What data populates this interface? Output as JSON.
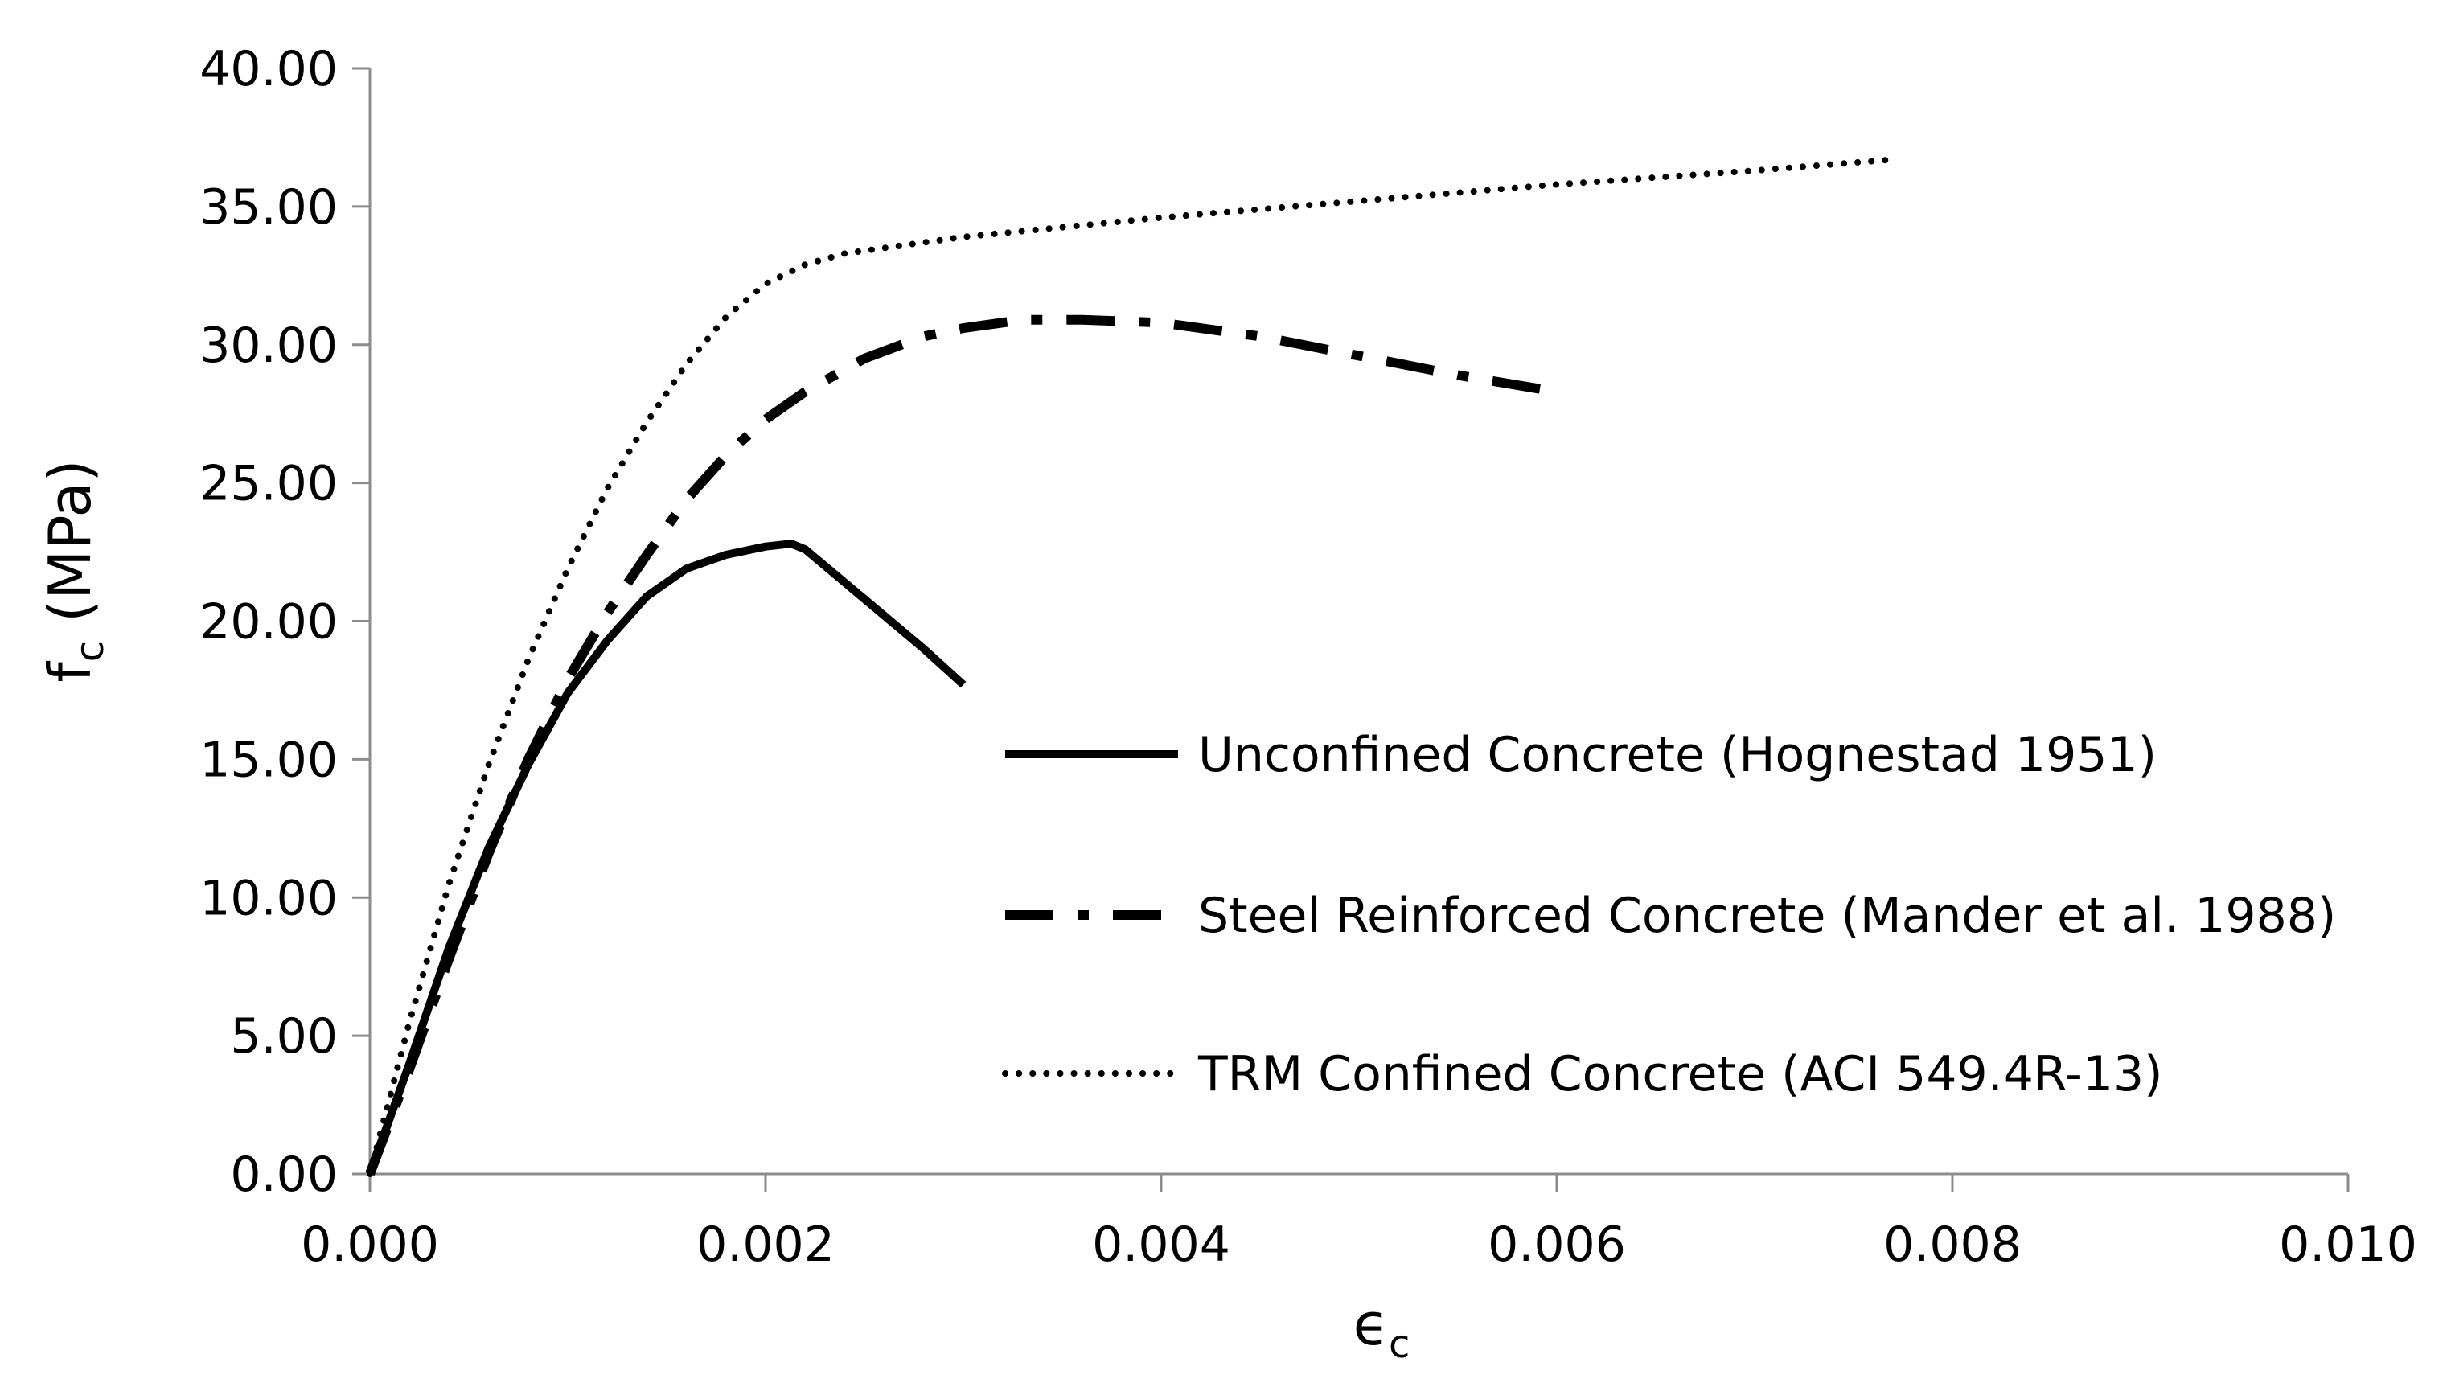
{
  "chart_data": {
    "type": "line",
    "title": "",
    "xlabel": {
      "main": "ϵ",
      "sub": "c"
    },
    "ylabel": {
      "main": "f",
      "sub": "c",
      "unit": " (MPa)"
    },
    "xlim": [
      0,
      0.01
    ],
    "ylim": [
      0,
      40
    ],
    "xticks": [
      0,
      0.002,
      0.004,
      0.006,
      0.008,
      0.01
    ],
    "xtick_labels": [
      "0.000",
      "0.002",
      "0.004",
      "0.006",
      "0.008",
      "0.010"
    ],
    "yticks": [
      0,
      5,
      10,
      15,
      20,
      25,
      30,
      35,
      40
    ],
    "ytick_labels": [
      "0.00",
      "5.00",
      "10.00",
      "15.00",
      "20.00",
      "25.00",
      "30.00",
      "35.00",
      "40.00"
    ],
    "grid": false,
    "legend_position": "right",
    "series": [
      {
        "name": "Unconfined Concrete (Hognestad 1951)",
        "style": "solid",
        "color": "#000000",
        "x": [
          0,
          0.0002,
          0.0004,
          0.0006,
          0.0008,
          0.001,
          0.0012,
          0.0014,
          0.0016,
          0.0018,
          0.002,
          0.00213,
          0.0022,
          0.0025,
          0.0028,
          0.003
        ],
        "y": [
          0,
          4.0,
          8.2,
          11.8,
          14.8,
          17.4,
          19.3,
          20.9,
          21.9,
          22.4,
          22.7,
          22.8,
          22.6,
          20.8,
          19.0,
          17.7
        ]
      },
      {
        "name": "Steel Reinforced Concrete (Mander et al. 1988)",
        "style": "dashdot",
        "color": "#000000",
        "x": [
          0,
          0.0002,
          0.0004,
          0.0006,
          0.0008,
          0.001,
          0.0012,
          0.0014,
          0.0016,
          0.0018,
          0.002,
          0.0022,
          0.0025,
          0.0028,
          0.003,
          0.0033,
          0.0036,
          0.004,
          0.0045,
          0.005,
          0.0055,
          0.006
        ],
        "y": [
          0,
          3.8,
          7.8,
          11.6,
          15.0,
          17.9,
          20.3,
          22.4,
          24.4,
          26.0,
          27.3,
          28.3,
          29.5,
          30.3,
          30.6,
          30.9,
          30.9,
          30.8,
          30.3,
          29.6,
          28.9,
          28.3
        ]
      },
      {
        "name": "TRM Confined Concrete (ACI 549.4R-13)",
        "style": "dotted",
        "color": "#000000",
        "x": [
          0,
          0.0002,
          0.0004,
          0.0006,
          0.0008,
          0.001,
          0.0012,
          0.0014,
          0.0016,
          0.0018,
          0.002,
          0.0022,
          0.0024,
          0.003,
          0.004,
          0.005,
          0.006,
          0.007,
          0.0077
        ],
        "y": [
          0,
          5.5,
          10.5,
          14.8,
          18.6,
          21.9,
          24.8,
          27.2,
          29.3,
          31.0,
          32.2,
          32.9,
          33.3,
          33.9,
          34.6,
          35.2,
          35.8,
          36.3,
          36.7
        ]
      }
    ]
  }
}
